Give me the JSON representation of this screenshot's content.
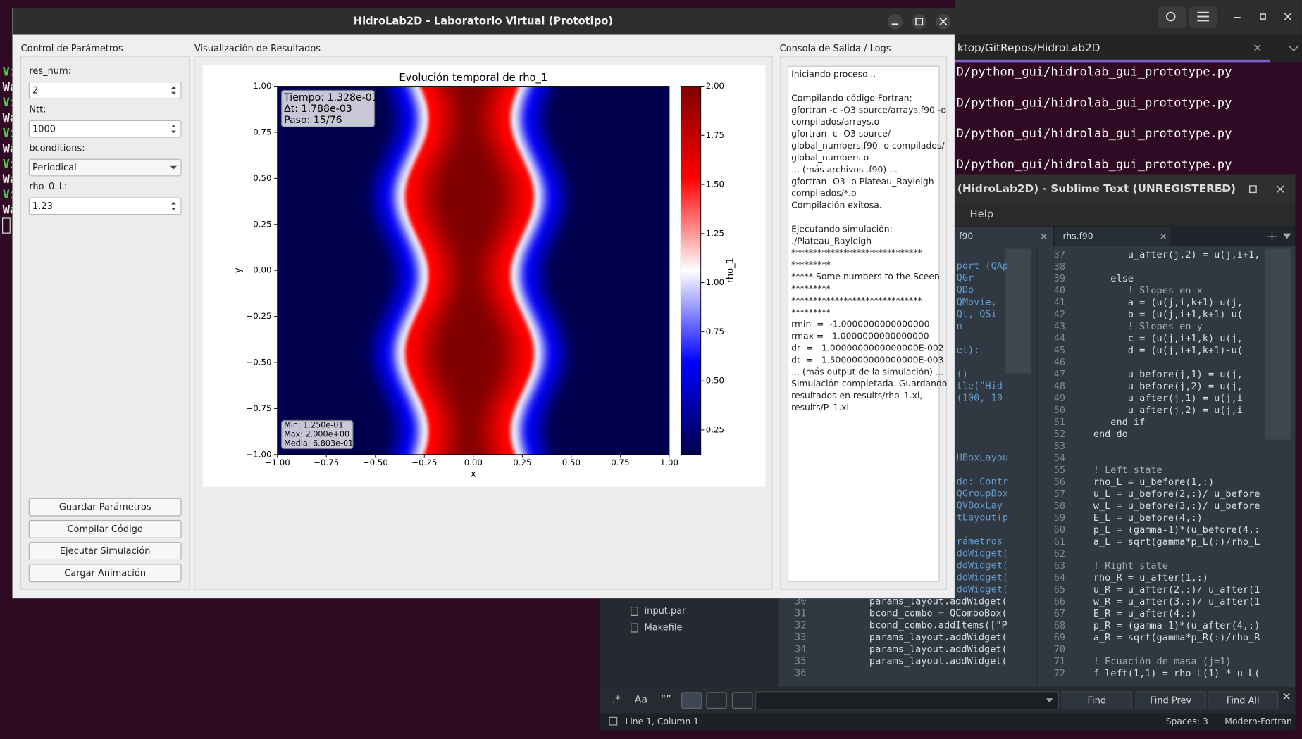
{
  "desktop": {
    "terminal": {
      "tab": "ktop/GitRepos/HidroLab2D",
      "lines": [
        "D/python_gui/hidrolab_gui_prototype.py",
        "D/python_gui/hidrolab_gui_prototype.py",
        "D/python_gui/hidrolab_gui_prototype.py",
        "D/python_gui/hidrolab_gui_prototype.py"
      ],
      "left_fragments": [
        "Vi",
        "Wa",
        "Vi",
        "Wa",
        "Vi",
        "Wa",
        "Vi",
        "Wa",
        "Vi",
        "Wa"
      ]
    }
  },
  "main_window": {
    "title": "HidroLab2D - Laboratorio Virtual (Prototipo)",
    "params": {
      "title": "Control de Parámetros",
      "fields": [
        {
          "label": "res_num:",
          "value": "2"
        },
        {
          "label": "Ntt:",
          "value": "1000"
        },
        {
          "label": "bconditions:",
          "value": "Periodical"
        },
        {
          "label": "rho_0_L:",
          "value": "1.23"
        }
      ],
      "buttons": [
        "Guardar Parámetros",
        "Compilar Código",
        "Ejecutar Simulación",
        "Cargar Animación"
      ]
    },
    "viz_title": "Visualización de Resultados",
    "console": {
      "title": "Consola de Salida / Logs",
      "paragraphs": [
        [
          "Iniciando proceso..."
        ],
        [
          "Compilando código Fortran:",
          "gfortran -c -O3 source/arrays.f90 -o",
          "compilados/arrays.o",
          "gfortran -c -O3 source/",
          "global_numbers.f90 -o compilados/",
          "global_numbers.o",
          "... (más archivos .f90) ...",
          "gfortran -O3 -o Plateau_Rayleigh",
          "compilados/*.o",
          "Compilación exitosa."
        ],
        [
          "Ejecutando simulación:",
          "./Plateau_Rayleigh",
          "******************************",
          "*********",
          "***** Some numbers to the Sceen",
          "*********",
          "******************************",
          "*********",
          "rmin  =  -1.0000000000000000",
          "rmax =   1.0000000000000000",
          "dr  =   1.0000000000000000E-002",
          "dt  =   1.5000000000000000E-003",
          "... (más output de la simulación) ...",
          "Simulación completada. Guardando",
          "resultados en results/rho_1.xl,",
          "results/P_1.xl"
        ]
      ]
    }
  },
  "chart_data": {
    "type": "heatmap",
    "title": "Evolución temporal de rho_1",
    "x_label": "x",
    "y_label": "y",
    "colorbar_label": "rho_1",
    "colormap": [
      "#00004c",
      "#0000ff",
      "#ffffff",
      "#ff0000",
      "#800000"
    ],
    "xlim": [
      -1,
      1
    ],
    "ylim": [
      -1,
      1
    ],
    "xticks": [
      {
        "value": -1,
        "label": "−1.00"
      },
      {
        "value": -0.75,
        "label": "−0.75"
      },
      {
        "value": -0.5,
        "label": "−0.50"
      },
      {
        "value": -0.25,
        "label": "−0.25"
      },
      {
        "value": 0,
        "label": "0.00"
      },
      0.25,
      {
        "value": 0.5,
        "label": "0.50"
      },
      0.75,
      {
        "value": 1,
        "label": "1.00"
      }
    ],
    "yticks": [
      {
        "value": -1,
        "label": "−1.00"
      },
      {
        "value": -0.75,
        "label": "−0.75"
      },
      {
        "value": -0.5,
        "label": "−0.50"
      },
      {
        "value": -0.25,
        "label": "−0.25"
      },
      {
        "value": 0,
        "label": "0.00"
      },
      0.25,
      {
        "value": 0.5,
        "label": "0.50"
      },
      0.75,
      {
        "value": 1,
        "label": "1.00"
      }
    ],
    "clim": [
      0.125,
      2.0
    ],
    "cticks": [
      0.25,
      {
        "value": 0.5,
        "label": "0.50"
      },
      0.75,
      {
        "value": 1,
        "label": "1.00"
      },
      1.25,
      {
        "value": 1.5,
        "label": "1.50"
      },
      1.75,
      {
        "value": 2,
        "label": "2.00"
      }
    ],
    "info_top": [
      "Tiempo: 1.328e-01",
      "Δt: 1.788e-03",
      "Paso: 15/76"
    ],
    "info_bottom": [
      "Min: 1.250e-01",
      "Max: 2.000e+00",
      "Media: 6.803e-01"
    ]
  },
  "editor": {
    "title": "(HidroLab2D) - Sublime Text (UNREGISTERED)",
    "menu": "Help",
    "tabs": [
      "f90",
      "rhs.f90"
    ],
    "sidebar": [
      "input.par",
      "Makefile"
    ],
    "left_code": [
      {
        "n": 2,
        "text": "port (QAp"
      },
      {
        "n": 3,
        "text": "QGr"
      },
      {
        "n": 4,
        "text": "QDo"
      },
      {
        "n": 5,
        "text": "QMovie,"
      },
      {
        "n": 6,
        "text": "Qt, QSi"
      },
      {
        "n": 7,
        "text": "n"
      },
      {
        "n": 9,
        "text": "et):"
      },
      {
        "n": 11,
        "text": "()"
      },
      {
        "n": 12,
        "text": "tle(\"Hid"
      },
      {
        "n": 13,
        "text": "(100, 10"
      },
      {
        "n": 18,
        "text": "HBoxLayou"
      },
      {
        "n": 20,
        "text": "do: Contr"
      },
      {
        "n": 21,
        "text": "QGroupBox"
      },
      {
        "n": 22,
        "text": "QVBoxLay"
      },
      {
        "n": 23,
        "text": "tLayout(p"
      },
      {
        "n": 25,
        "text": "rámetros"
      },
      {
        "n": 26,
        "text": "ddWidget("
      },
      {
        "n": 27,
        "text": "ddWidget("
      },
      {
        "n": 28,
        "text": "ddWidget("
      },
      {
        "n": 29,
        "text": "ddWidget("
      },
      {
        "n": 30,
        "text": "params_layout.addWidget("
      },
      {
        "n": 31,
        "text": "bcond_combo = QComboBox("
      },
      {
        "n": 32,
        "text": "bcond_combo.addItems([\"P"
      },
      {
        "n": 33,
        "text": "params_layout.addWidget("
      },
      {
        "n": 34,
        "text": "params_layout.addWidget("
      },
      {
        "n": 35,
        "text": "params_layout.addWidget("
      },
      {
        "n": 36
      }
    ],
    "right_code": [
      {
        "n": 37,
        "text": "         u_after(j,2) = u(j,i+1,"
      },
      {
        "n": 38
      },
      {
        "n": 39,
        "text": "      else"
      },
      {
        "n": 40,
        "text": "         ! Slopes en x"
      },
      {
        "n": 41,
        "text": "         a = (u(j,i,k+1)-u(j,"
      },
      {
        "n": 42,
        "text": "         b = (u(j,i+1,k+1)-u("
      },
      {
        "n": 43,
        "text": "         ! Slopes en y"
      },
      {
        "n": 44,
        "text": "         c = (u(j,i+1,k)-u(j,"
      },
      {
        "n": 45,
        "text": "         d = (u(j,i+1,k+1)-u("
      },
      {
        "n": 46
      },
      {
        "n": 47,
        "text": "         u_before(j,1) = u(j,"
      },
      {
        "n": 48,
        "text": "         u_before(j,2) = u(j,"
      },
      {
        "n": 49,
        "text": "         u_after(j,1) = u(j,i"
      },
      {
        "n": 50,
        "text": "         u_after(j,2) = u(j,i"
      },
      {
        "n": 51,
        "text": "      end if"
      },
      {
        "n": 52,
        "text": "   end do"
      },
      {
        "n": 53
      },
      {
        "n": 54
      },
      {
        "n": 55,
        "text": "   ! Left state"
      },
      {
        "n": 56,
        "text": "   rho_L = u_before(1,:)"
      },
      {
        "n": 57,
        "text": "   u_L = u_before(2,:)/ u_before"
      },
      {
        "n": 58,
        "text": "   w_L = u_before(3,:)/ u_before"
      },
      {
        "n": 59,
        "text": "   E_L = u_before(4,:)"
      },
      {
        "n": 60,
        "text": "   p_L = (gamma-1)*(u_before(4,:"
      },
      {
        "n": 61,
        "text": "   a_L = sqrt(gamma*p_L(:)/rho_L"
      },
      {
        "n": 62
      },
      {
        "n": 63,
        "text": "   ! Right state"
      },
      {
        "n": 64,
        "text": "   rho_R = u_after(1,:)"
      },
      {
        "n": 65,
        "text": "   u_R = u_after(2,:)/ u_after(1"
      },
      {
        "n": 66,
        "text": "   w_R = u_after(3,:)/ u_after(1"
      },
      {
        "n": 67,
        "text": "   E_R = u_after(4,:)"
      },
      {
        "n": 68,
        "text": "   p_R = (gamma-1)*(u_after(4,:)"
      },
      {
        "n": 69,
        "text": "   a_R = sqrt(gamma*p_R(:)/rho_R"
      },
      {
        "n": 70
      },
      {
        "n": 71,
        "text": "   ! Ecuación de masa (j=1)"
      },
      {
        "n": 72,
        "text": "   f left(1,1) = rho L(1) * u L("
      }
    ],
    "find": {
      "toggles": [
        ".*",
        "Aa",
        "“”"
      ],
      "buttons": [
        "Find",
        "Find Prev",
        "Find All"
      ]
    },
    "status": {
      "position": "Line 1, Column 1",
      "spaces": "Spaces: 3",
      "syntax": "Modern-Fortran"
    }
  }
}
